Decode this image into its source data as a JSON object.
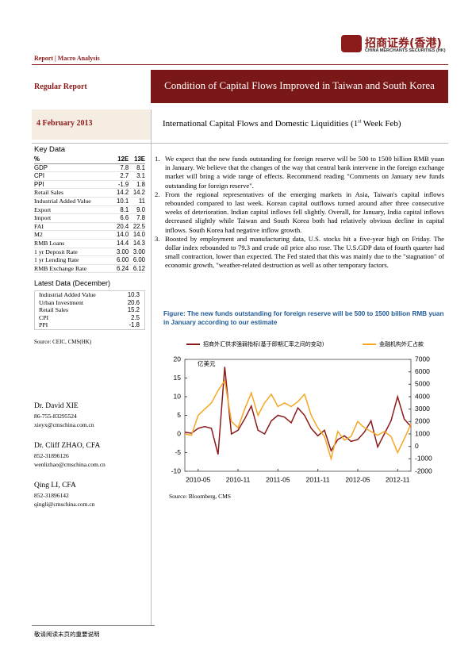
{
  "header": {
    "section": "Report | Macro Analysis",
    "report_kind": "Regular Report",
    "title": "Condition of Capital Flows Improved in Taiwan and South Korea",
    "date": "4 February 2013",
    "subtitle": [
      "International Capital Flows and Domestic Liquidities (1",
      "st",
      " Week Feb)"
    ],
    "logo": {
      "name": "招商证券(香港)",
      "english": "CHINA MERCHANTS SECURITIES (HK)"
    }
  },
  "key_data": {
    "title": "Key Data",
    "columns": [
      "%",
      "12E",
      "13E"
    ],
    "rows": [
      [
        "GDP",
        "7.8",
        "8.1"
      ],
      [
        "CPI",
        "2.7",
        "3.1"
      ],
      [
        "PPI",
        "-1.9",
        "1.8"
      ],
      [
        "Retail Sales",
        "14.2",
        "14.2"
      ],
      [
        "Industrial Added Value",
        "10.1",
        "11"
      ],
      [
        "Export",
        "8.1",
        "9.0"
      ],
      [
        "Import",
        "6.6",
        "7.8"
      ],
      [
        "FAI",
        "20.4",
        "22.5"
      ],
      [
        "M2",
        "14.0",
        "14.0"
      ],
      [
        "RMB Loans",
        "14.4",
        "14.3"
      ],
      [
        "1 yr Deposit Rate",
        "3.00",
        "3.00"
      ],
      [
        "1 yr Lending Rate",
        "6.00",
        "6.00"
      ],
      [
        "RMB Exchange Rate",
        "6.24",
        "6.12"
      ]
    ]
  },
  "latest_data": {
    "title": "Latest Data (December)",
    "rows": [
      [
        "Industrial Added Value",
        "10.3"
      ],
      [
        "Urban Investment",
        "20.6"
      ],
      [
        "Retail Sales",
        "15.2"
      ],
      [
        "CPI",
        "2.5"
      ],
      [
        "PPI",
        "-1.8"
      ]
    ],
    "source": "Source: CEIC, CMS(HK)"
  },
  "analysts": [
    {
      "name": "Dr. David XIE",
      "phone": "86-755-83295524",
      "email": "xieyx@cmschina.com.cn"
    },
    {
      "name": "Dr. Cliff ZHAO, CFA",
      "phone": "852-31896126",
      "email": "wenlizhao@cmschina.com.cn"
    },
    {
      "name": "Qing LI, CFA",
      "phone": "852-31896142",
      "email": "qingli@cmschina.com.cn"
    }
  ],
  "body": [
    {
      "marker": "1.",
      "text": "We expect that the new funds outstanding for foreign reserve will be 500 to 1500 billion RMB yuan in January. We believe that the changes of the way that central bank intervene in the foreign exchange market will bring a wide range of effects. Recommend reading \"Comments on January new funds outstanding for foreign reserve\"."
    },
    {
      "marker": "2.",
      "text": "From the regional representatives of the emerging markets in Asia, Taiwan's capital inflows rebounded compared to last week. Korean capital outflows turned around after three consecutive weeks of deterioration. Indian capital inflows fell slightly. Overall, for January, India capital inflows decreased slightly while Taiwan and South Korea both had relatively obvious decline in capital inflows. South Korea had negative inflow growth."
    },
    {
      "marker": "3.",
      "text": "Boosted by employment and manufacturing data, U.S. stocks hit a five-year high on Friday. The dollar index rebounded to 79.3 and crude oil price also rose. The U.S.GDP data of fourth quarter had small contraction, lower than expected. The Fed stated that this was mainly due to the \"stagnation\" of economic growth, \"weather-related destruction as well as other temporary factors."
    }
  ],
  "figure": {
    "caption": "Figure:  The new funds outstanding for foreign reserve will be 500 to 1500 billion RMB yuan in January according to our estimate",
    "source": "Source:  Bloomberg, CMS",
    "chart_data": {
      "type": "line",
      "unit_label": "亿美元",
      "categories": [
        null,
        null,
        "2010-05",
        null,
        null,
        null,
        null,
        null,
        "2010-11",
        null,
        null,
        null,
        null,
        null,
        "2011-05",
        null,
        null,
        null,
        null,
        null,
        "2011-11",
        null,
        null,
        null,
        null,
        null,
        "2012-05",
        null,
        null,
        null,
        null,
        null,
        "2012-11",
        null,
        null
      ],
      "series": [
        {
          "name": "招商外汇供求强弱指标(基于即期汇率之间的变动)",
          "color": "#8b1a1a",
          "values": [
            0.5,
            0.2,
            1.5,
            2,
            1.5,
            -5.5,
            18,
            0,
            1,
            4,
            7.5,
            1,
            0,
            3.5,
            5,
            4.5,
            3,
            7,
            5,
            1.5,
            -0.5,
            1,
            -4.5,
            -1.5,
            -0.5,
            -2,
            -1.5,
            0.5,
            3.5,
            -3.5,
            0,
            3.5,
            10,
            4,
            2
          ]
        },
        {
          "name": "金融机构外汇占款",
          "color": "#f5a623",
          "axis": "y2",
          "values": [
            1000,
            900,
            2500,
            3000,
            3500,
            4500,
            5300,
            2000,
            1500,
            3000,
            4300,
            2500,
            3500,
            4200,
            3200,
            3500,
            3200,
            3600,
            4200,
            2500,
            1500,
            800,
            -1000,
            1200,
            500,
            800,
            2000,
            1500,
            1200,
            900,
            1200,
            800,
            -500,
            600,
            1800
          ]
        }
      ],
      "ylim": [
        -10,
        20
      ],
      "yticks": [
        -10,
        -5,
        0,
        5,
        10,
        15,
        20
      ],
      "y2lim": [
        -2000,
        7000
      ],
      "y2ticks": [
        -2000,
        -1000,
        0,
        1000,
        2000,
        3000,
        4000,
        5000,
        6000,
        7000
      ],
      "legend": "top"
    }
  },
  "footer": "敬请阅读末页的重要说明"
}
